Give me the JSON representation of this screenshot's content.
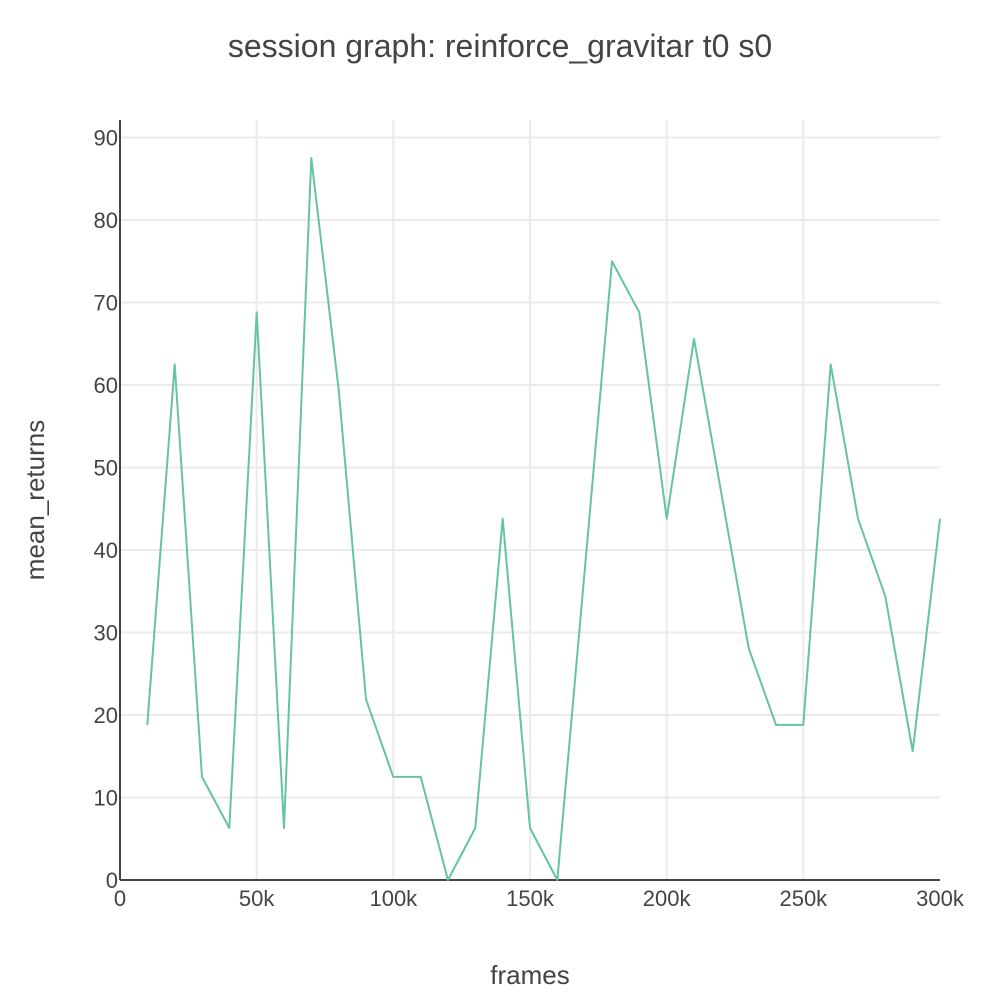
{
  "chart_data": {
    "type": "line",
    "title": "session graph: reinforce_gravitar t0 s0",
    "xlabel": "frames",
    "ylabel": "mean_returns",
    "xlim": [
      0,
      300000
    ],
    "ylim": [
      0,
      90
    ],
    "x_ticks": [
      0,
      50000,
      100000,
      150000,
      200000,
      250000,
      300000
    ],
    "x_tick_labels": [
      "0",
      "50k",
      "100k",
      "150k",
      "200k",
      "250k",
      "300k"
    ],
    "y_ticks": [
      0,
      10,
      20,
      30,
      40,
      50,
      60,
      70,
      80,
      90
    ],
    "y_tick_labels": [
      "0",
      "10",
      "20",
      "30",
      "40",
      "50",
      "60",
      "70",
      "80",
      "90"
    ],
    "grid": true,
    "series": [
      {
        "color": "#66c2a5",
        "x": [
          10000,
          20000,
          30000,
          40000,
          50000,
          60000,
          70000,
          80000,
          90000,
          100000,
          110000,
          120000,
          130000,
          140000,
          150000,
          160000,
          170000,
          180000,
          190000,
          200000,
          210000,
          220000,
          230000,
          240000,
          250000,
          260000,
          270000,
          280000,
          290000,
          300000
        ],
        "y": [
          18.8,
          62.5,
          12.5,
          6.3,
          68.8,
          6.3,
          87.5,
          59.4,
          21.9,
          12.5,
          12.5,
          0,
          6.3,
          43.8,
          6.3,
          0,
          37.5,
          75.0,
          68.8,
          43.8,
          65.6,
          46.9,
          28.1,
          18.8,
          18.8,
          62.5,
          43.8,
          34.4,
          15.6,
          43.8
        ]
      }
    ]
  }
}
